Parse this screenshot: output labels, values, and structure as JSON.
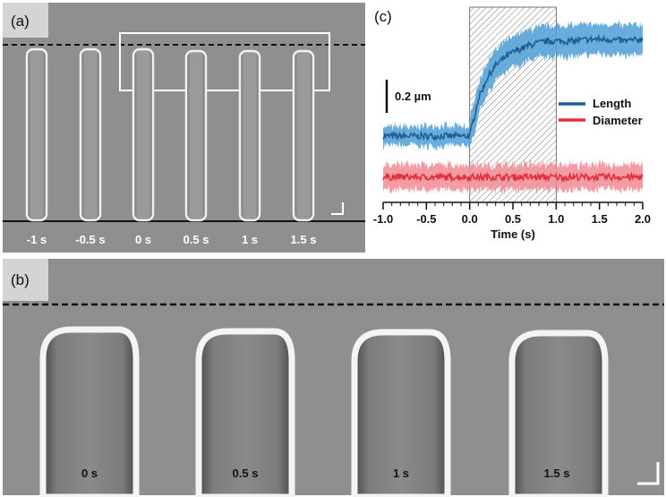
{
  "panels": {
    "a": {
      "label": "(a)",
      "times": [
        "-1 s",
        "-0.5 s",
        "0 s",
        "0.5 s",
        "1 s",
        "1.5 s"
      ]
    },
    "b": {
      "label": "(b)",
      "times": [
        "0 s",
        "0.5 s",
        "1 s",
        "1.5 s"
      ]
    },
    "c": {
      "label": "(c)"
    }
  },
  "chart_data": {
    "type": "line",
    "xlabel": "Time (s)",
    "ylabel": "",
    "xlim": [
      -1.0,
      2.0
    ],
    "x_ticks": [
      "-1.0",
      "-0.5",
      "0.0",
      "0.5",
      "1.0",
      "1.5",
      "2.0"
    ],
    "scale_bar_label": "0.2 µm",
    "stimulus_window": [
      0.0,
      1.0
    ],
    "legend": "right",
    "series": [
      {
        "name": "Length",
        "color": "#1f5f93",
        "band_color": "#4f9fd6",
        "x": [
          -1.0,
          -0.8,
          -0.6,
          -0.4,
          -0.2,
          0.0,
          0.05,
          0.1,
          0.2,
          0.3,
          0.4,
          0.5,
          0.6,
          0.7,
          0.8,
          0.9,
          1.0,
          1.2,
          1.4,
          1.6,
          1.8,
          2.0
        ],
        "y": [
          0.0,
          0.0,
          0.0,
          0.0,
          0.0,
          0.0,
          0.1,
          0.2,
          0.31,
          0.38,
          0.42,
          0.45,
          0.47,
          0.49,
          0.5,
          0.51,
          0.51,
          0.51,
          0.52,
          0.52,
          0.51,
          0.52
        ]
      },
      {
        "name": "Diameter",
        "color": "#e03040",
        "band_color": "#f28b93",
        "x": [
          -1.0,
          -0.5,
          0.0,
          0.5,
          1.0,
          1.5,
          2.0
        ],
        "y": [
          -0.22,
          -0.22,
          -0.22,
          -0.22,
          -0.22,
          -0.22,
          -0.22
        ]
      }
    ]
  }
}
